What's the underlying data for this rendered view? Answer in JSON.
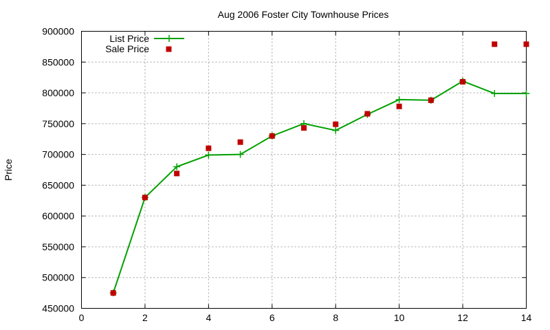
{
  "chart_data": {
    "type": "line",
    "title": "Aug 2006 Foster City Townhouse Prices",
    "xlabel": "",
    "ylabel": "Price",
    "xlim": [
      0,
      14
    ],
    "ylim": [
      450000,
      900000
    ],
    "x_ticks": [
      "0",
      "2",
      "4",
      "6",
      "8",
      "10",
      "12",
      "14"
    ],
    "x_tick_values": [
      0,
      2,
      4,
      6,
      8,
      10,
      12,
      14
    ],
    "y_ticks": [
      "450000",
      "500000",
      "550000",
      "600000",
      "650000",
      "700000",
      "750000",
      "800000",
      "850000",
      "900000"
    ],
    "y_tick_values": [
      450000,
      500000,
      550000,
      600000,
      650000,
      700000,
      750000,
      800000,
      850000,
      900000
    ],
    "grid": true,
    "legend_position": "top-left",
    "series": [
      {
        "name": "List Price",
        "style": "line-with-plus-markers",
        "color": "#00a000",
        "x": [
          1,
          2,
          3,
          4,
          5,
          6,
          7,
          8,
          9,
          10,
          11,
          12,
          13,
          14
        ],
        "values": [
          475000,
          630000,
          680000,
          699000,
          700000,
          730000,
          750000,
          739000,
          765000,
          789000,
          788000,
          819000,
          799000,
          799000
        ]
      },
      {
        "name": "Sale Price",
        "style": "square-markers",
        "color": "#c00000",
        "x": [
          1,
          2,
          3,
          4,
          5,
          6,
          7,
          8,
          9,
          10,
          11,
          12,
          13,
          14
        ],
        "values": [
          475000,
          630000,
          669000,
          710000,
          720000,
          730000,
          743000,
          749000,
          766000,
          778000,
          788000,
          818000,
          879000,
          879000
        ]
      }
    ]
  }
}
